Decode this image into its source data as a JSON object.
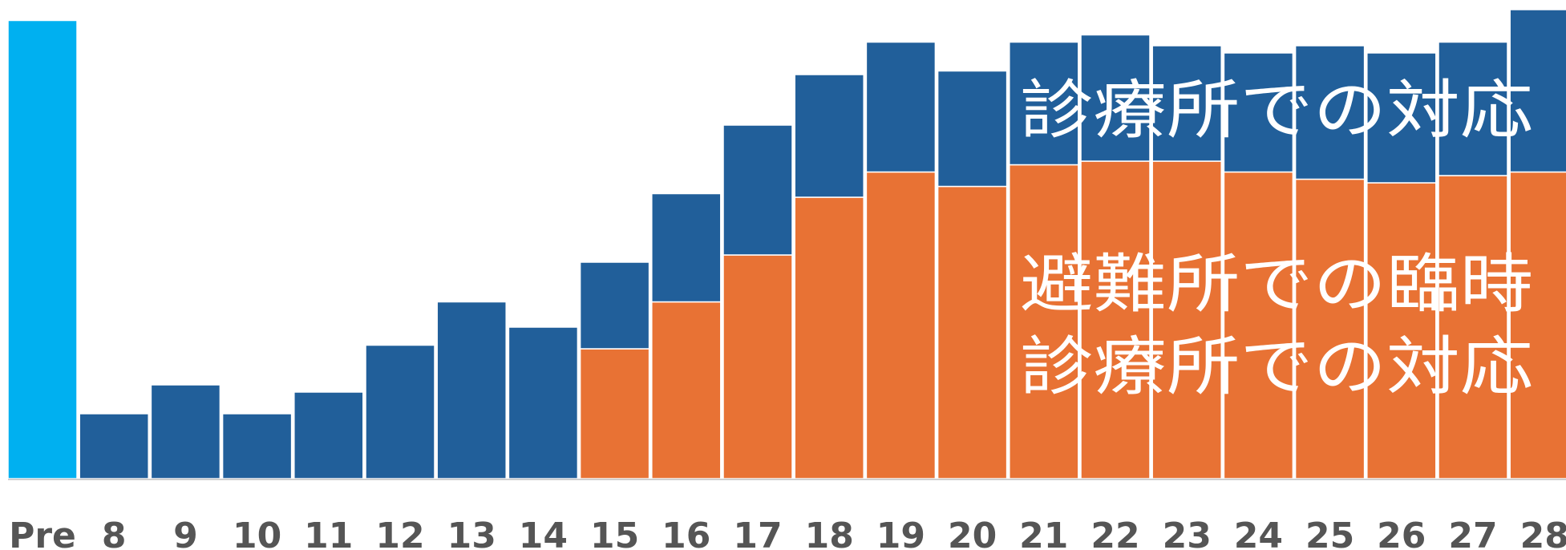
{
  "chart_data": {
    "type": "bar",
    "stacked": true,
    "categories": [
      "Pre",
      "8",
      "9",
      "10",
      "11",
      "12",
      "13",
      "14",
      "15",
      "16",
      "17",
      "18",
      "19",
      "20",
      "21",
      "22",
      "23",
      "24",
      "25",
      "26",
      "27",
      "28"
    ],
    "series": [
      {
        "name": "避難所での臨時診療所での対応",
        "color": "#E87234",
        "values": [
          0,
          0,
          0,
          0,
          0,
          0,
          0,
          0,
          36,
          49,
          62,
          78,
          85,
          81,
          87,
          88,
          88,
          85,
          83,
          82,
          84,
          85
        ]
      },
      {
        "name": "診療所での対応",
        "color": "#215F9A",
        "values": [
          0,
          18,
          26,
          18,
          24,
          37,
          49,
          42,
          24,
          30,
          36,
          34,
          36,
          32,
          34,
          35,
          32,
          33,
          37,
          36,
          37,
          45
        ]
      },
      {
        "name": "",
        "color": "#00B0F0",
        "values": [
          127,
          0,
          0,
          0,
          0,
          0,
          0,
          0,
          0,
          0,
          0,
          0,
          0,
          0,
          0,
          0,
          0,
          0,
          0,
          0,
          0,
          0
        ]
      }
    ],
    "annotations": [
      {
        "lines": [
          "診療所での対応"
        ]
      },
      {
        "lines": [
          "避難所での臨時",
          "診療所での対応"
        ]
      }
    ],
    "xlabel": "",
    "ylabel": "",
    "grid": false,
    "legend": "none"
  }
}
